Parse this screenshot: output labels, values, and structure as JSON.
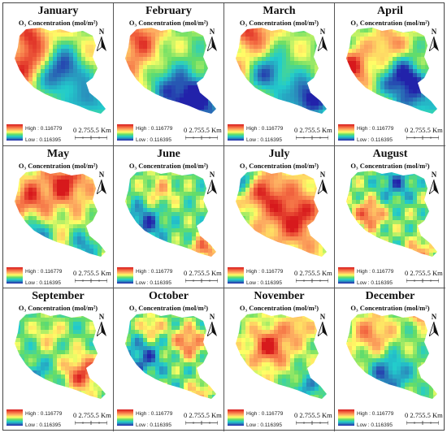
{
  "figure": {
    "subtitle": "O₃ Concentration (mol/m²)",
    "north_label": "N",
    "legend": {
      "high_label": "High : 0.116779",
      "low_label": "Low : 0.116395"
    },
    "scale": {
      "label": "0  2.755.5 Km"
    },
    "colormap": [
      "#2222aa",
      "#2b83ba",
      "#22cccc",
      "#66dd66",
      "#ffff66",
      "#fdae61",
      "#f46d43",
      "#d7191c"
    ],
    "panels": [
      {
        "month": "January",
        "pattern": "jan"
      },
      {
        "month": "February",
        "pattern": "feb"
      },
      {
        "month": "March",
        "pattern": "mar"
      },
      {
        "month": "April",
        "pattern": "apr"
      },
      {
        "month": "May",
        "pattern": "may"
      },
      {
        "month": "June",
        "pattern": "jun"
      },
      {
        "month": "July",
        "pattern": "jul"
      },
      {
        "month": "August",
        "pattern": "aug"
      },
      {
        "month": "September",
        "pattern": "sep"
      },
      {
        "month": "October",
        "pattern": "oct"
      },
      {
        "month": "November",
        "pattern": "nov"
      },
      {
        "month": "December",
        "pattern": "dec"
      }
    ]
  }
}
